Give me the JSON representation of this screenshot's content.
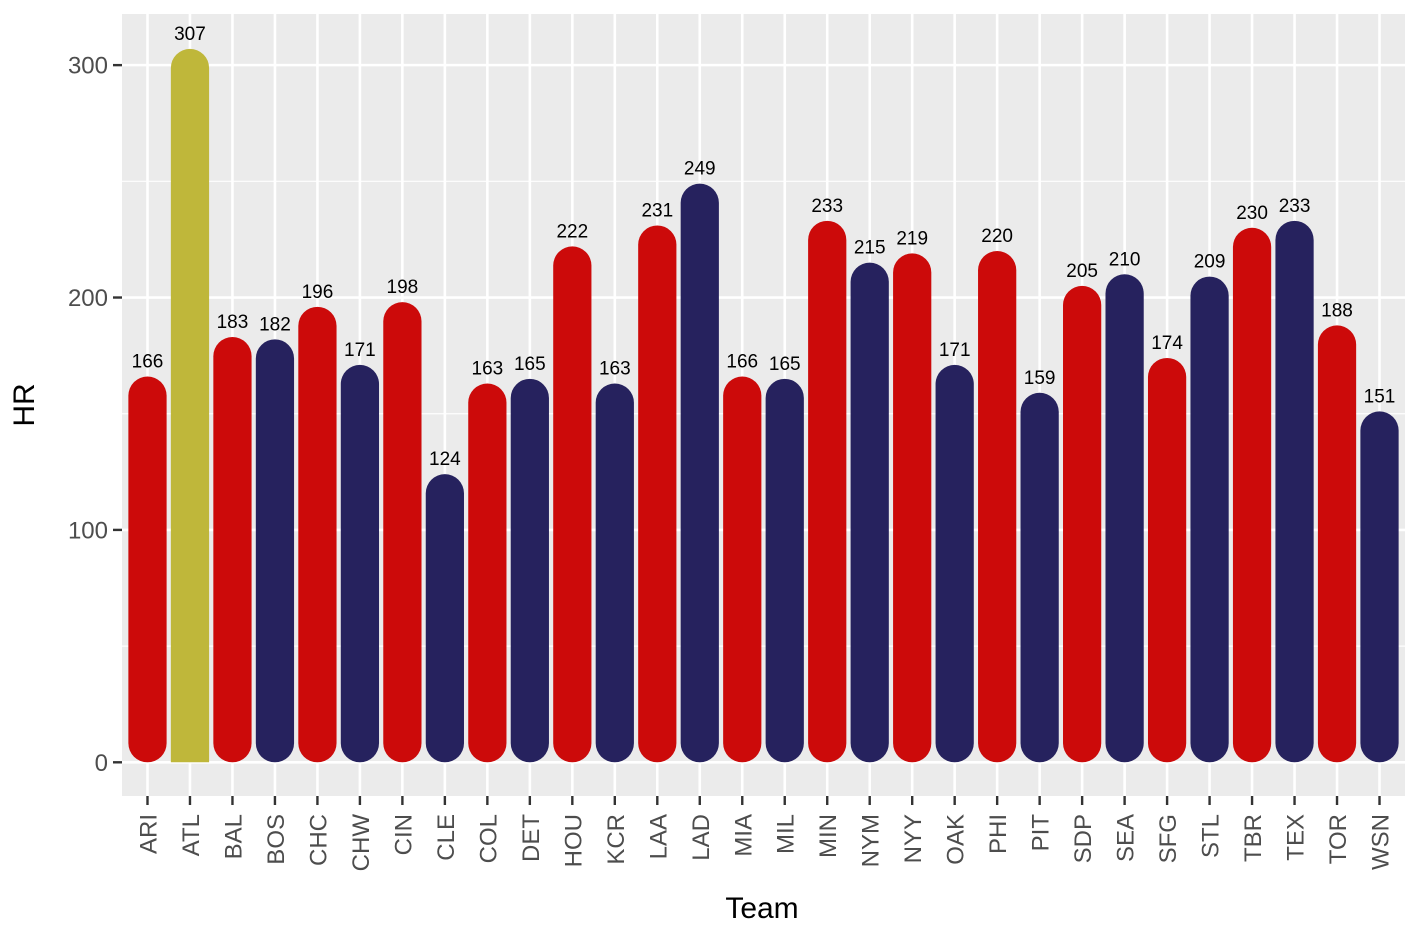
{
  "chart_data": {
    "type": "bar",
    "xlabel": "Team",
    "ylabel": "HR",
    "ylim": [
      -14.5,
      322
    ],
    "yticks": [
      0,
      100,
      200,
      300
    ],
    "grid": true,
    "legend": "none",
    "categories": [
      "ARI",
      "ATL",
      "BAL",
      "BOS",
      "CHC",
      "CHW",
      "CIN",
      "CLE",
      "COL",
      "DET",
      "HOU",
      "KCR",
      "LAA",
      "LAD",
      "MIA",
      "MIL",
      "MIN",
      "NYM",
      "NYY",
      "OAK",
      "PHI",
      "PIT",
      "SDP",
      "SEA",
      "SFG",
      "STL",
      "TBR",
      "TEX",
      "TOR",
      "WSN"
    ],
    "values": [
      166,
      307,
      183,
      182,
      196,
      171,
      198,
      124,
      163,
      165,
      222,
      163,
      231,
      249,
      166,
      165,
      233,
      215,
      219,
      171,
      220,
      159,
      205,
      210,
      174,
      209,
      230,
      233,
      188,
      151
    ],
    "data_labels": [
      "166",
      "307",
      "183",
      "182",
      "196",
      "171",
      "198",
      "124",
      "163",
      "165",
      "222",
      "163",
      "231",
      "249",
      "166",
      "165",
      "233",
      "215",
      "219",
      "171",
      "220",
      "159",
      "205",
      "210",
      "174",
      "209",
      "230",
      "233",
      "188",
      "151"
    ],
    "bar_colors": [
      "#cc0a0a",
      "#bfb73a",
      "#cc0a0a",
      "#26225e",
      "#cc0a0a",
      "#26225e",
      "#cc0a0a",
      "#26225e",
      "#cc0a0a",
      "#26225e",
      "#cc0a0a",
      "#26225e",
      "#cc0a0a",
      "#26225e",
      "#cc0a0a",
      "#26225e",
      "#cc0a0a",
      "#26225e",
      "#cc0a0a",
      "#26225e",
      "#cc0a0a",
      "#26225e",
      "#cc0a0a",
      "#26225e",
      "#cc0a0a",
      "#26225e",
      "#cc0a0a",
      "#26225e",
      "#cc0a0a",
      "#26225e"
    ],
    "highlight_category": "ATL",
    "colors": {
      "red": "#cc0a0a",
      "navy": "#26225e",
      "highlight": "#bfb73a",
      "panel": "#ebebeb",
      "grid": "#ffffff"
    }
  }
}
